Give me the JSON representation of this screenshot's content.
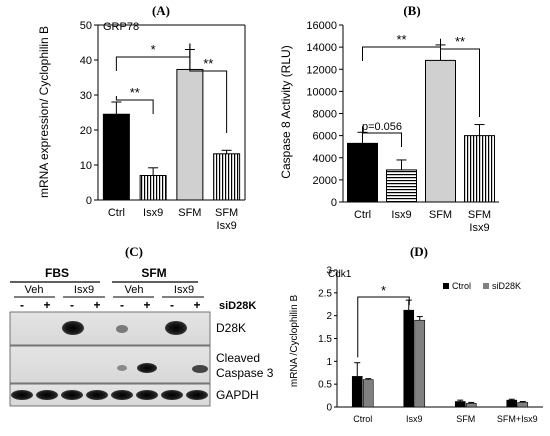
{
  "panels": {
    "A": "(A)",
    "B": "(B)",
    "C": "(C)",
    "D": "(D)"
  },
  "chart_data": [
    {
      "type": "bar",
      "panel": "A",
      "annotation": "GRP78",
      "ylabel": "mRNA expression/ Cyclophilin B",
      "ylim": [
        0,
        50
      ],
      "yticks": [
        0,
        10,
        20,
        30,
        40,
        50
      ],
      "categories": [
        "Ctrl",
        "Isx9",
        "SFM",
        "SFM Isx9"
      ],
      "values": [
        24.5,
        7,
        37.3,
        13.2
      ],
      "errors": [
        3.5,
        2.2,
        5.7,
        1.0
      ],
      "fills": [
        "#000000",
        "stripe-v",
        "#d0d0d0",
        "stripe-v"
      ],
      "significance": [
        {
          "pair": [
            0,
            2
          ],
          "label": "*"
        },
        {
          "pair": [
            0,
            1
          ],
          "label": "**"
        },
        {
          "pair": [
            2,
            3
          ],
          "label": "**"
        }
      ]
    },
    {
      "type": "bar",
      "panel": "B",
      "ylabel": "Caspase 8 Activity (RLU)",
      "ylim": [
        0,
        16000
      ],
      "yticks": [
        0,
        2000,
        4000,
        6000,
        8000,
        10000,
        12000,
        14000,
        16000
      ],
      "categories": [
        "Ctrl",
        "Isx9",
        "SFM",
        "SFM Isx9"
      ],
      "values": [
        5300,
        2900,
        12800,
        6000
      ],
      "errors": [
        1000,
        900,
        1400,
        1000
      ],
      "fills": [
        "#000000",
        "stripe-h",
        "#d0d0d0",
        "stripe-v"
      ],
      "significance": [
        {
          "pair": [
            0,
            2
          ],
          "label": "**"
        },
        {
          "pair": [
            0,
            1
          ],
          "label": "p=0.056"
        },
        {
          "pair": [
            2,
            3
          ],
          "label": "**"
        }
      ]
    },
    {
      "type": "bar",
      "panel": "D",
      "annotation": "Cdk1",
      "ylabel": "mRNA /Cyclophilin B",
      "ylim": [
        0,
        3
      ],
      "yticks": [
        "0",
        "0.5",
        "1",
        "1.5",
        "2",
        "2.5",
        "3"
      ],
      "categories": [
        "Ctrol",
        "Isx9",
        "SFM",
        "SFM+Isx9"
      ],
      "series": [
        {
          "name": "Ctrol",
          "color": "#000000",
          "values": [
            0.67,
            2.12,
            0.12,
            0.15
          ],
          "errors": [
            0.3,
            0.22,
            0.03,
            0.02
          ]
        },
        {
          "name": "siD28K",
          "color": "#808080",
          "values": [
            0.6,
            1.9,
            0.08,
            0.1
          ],
          "errors": [
            0.02,
            0.08,
            0.02,
            0.02
          ]
        }
      ],
      "significance": [
        {
          "pair": [
            0,
            1
          ],
          "label": "*"
        }
      ],
      "legend_position": "top-right"
    }
  ],
  "blot": {
    "groups": [
      "FBS",
      "SFM"
    ],
    "subgroups": [
      "Veh",
      "Isx9",
      "Veh",
      "Isx9"
    ],
    "lane_signs": [
      "-",
      "+",
      "-",
      "+",
      "-",
      "+",
      "-",
      "+"
    ],
    "sign_label": "siD28K",
    "rows": [
      "D28K",
      "Cleaved\nCaspase 3",
      "GAPDH"
    ],
    "row_labels": [
      "D28K",
      "Cleaved",
      "Caspase 3",
      "GAPDH"
    ]
  }
}
